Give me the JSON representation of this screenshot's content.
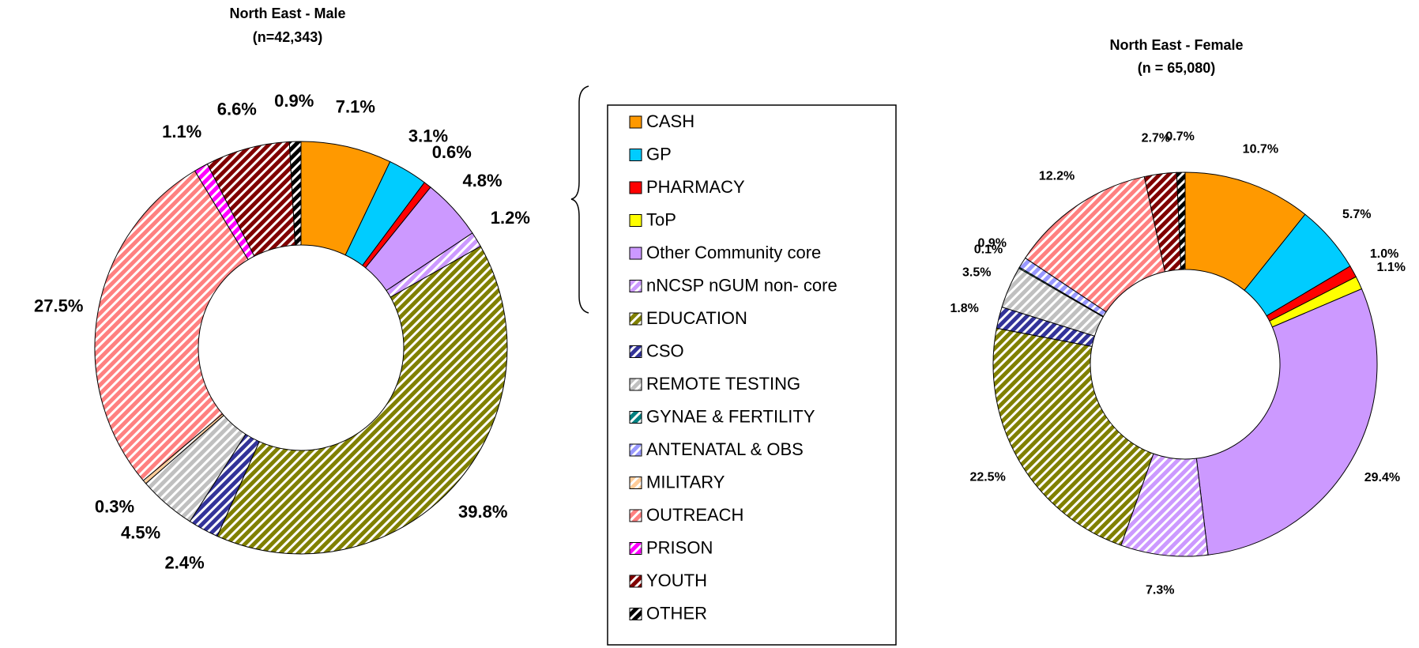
{
  "legend": {
    "categories": [
      "CASH",
      "GP",
      "PHARMACY",
      "ToP",
      "Other Community core",
      " nNCSP nGUM non- core",
      "EDUCATION",
      "CSO",
      "REMOTE TESTING",
      "GYNAE & FERTILITY",
      "ANTENATAL & OBS",
      "MILITARY",
      "OUTREACH",
      "PRISON",
      "YOUTH",
      "OTHER"
    ],
    "colors": [
      "#ff9900",
      "#00ccff",
      "#ff0000",
      "#ffff00",
      "#cc99ff",
      "#cc99ff",
      "#808000",
      "#333399",
      "#c0c0c0",
      "#008080",
      "#9999ff",
      "#ffcc99",
      "#ff8080",
      "#ff00ff",
      "#800000",
      "#000000"
    ],
    "hatch": [
      false,
      false,
      false,
      false,
      false,
      true,
      true,
      true,
      true,
      true,
      true,
      true,
      true,
      true,
      true,
      true
    ]
  },
  "chart_data": [
    {
      "type": "pie",
      "title": "North East - Male",
      "subtitle": "(n=42,343)",
      "values": [
        7.1,
        3.1,
        0.6,
        null,
        4.8,
        1.2,
        39.8,
        2.4,
        4.5,
        null,
        null,
        0.3,
        27.5,
        1.1,
        6.6,
        0.9
      ],
      "value_labels": [
        "7.1%",
        "3.1%",
        "0.6%",
        null,
        "4.8%",
        "1.2%",
        "39.8%",
        "2.4%",
        "4.5%",
        null,
        null,
        "0.3%",
        "27.5%",
        "1.1%",
        "6.6%",
        "0.9%"
      ]
    },
    {
      "type": "pie",
      "title": "North East - Female",
      "subtitle": "(n = 65,080)",
      "values": [
        10.7,
        5.7,
        1.0,
        1.1,
        29.4,
        7.3,
        22.5,
        1.8,
        3.5,
        0.1,
        0.9,
        null,
        12.2,
        null,
        2.7,
        0.7
      ],
      "value_labels": [
        "10.7%",
        "5.7%",
        "1.0%",
        "1.1%",
        "29.4%",
        "7.3%",
        "22.5%",
        "1.8%",
        "3.5%",
        "0.1%",
        "0.9%",
        null,
        "12.2%",
        null,
        "2.7%",
        "0.7%"
      ]
    }
  ]
}
